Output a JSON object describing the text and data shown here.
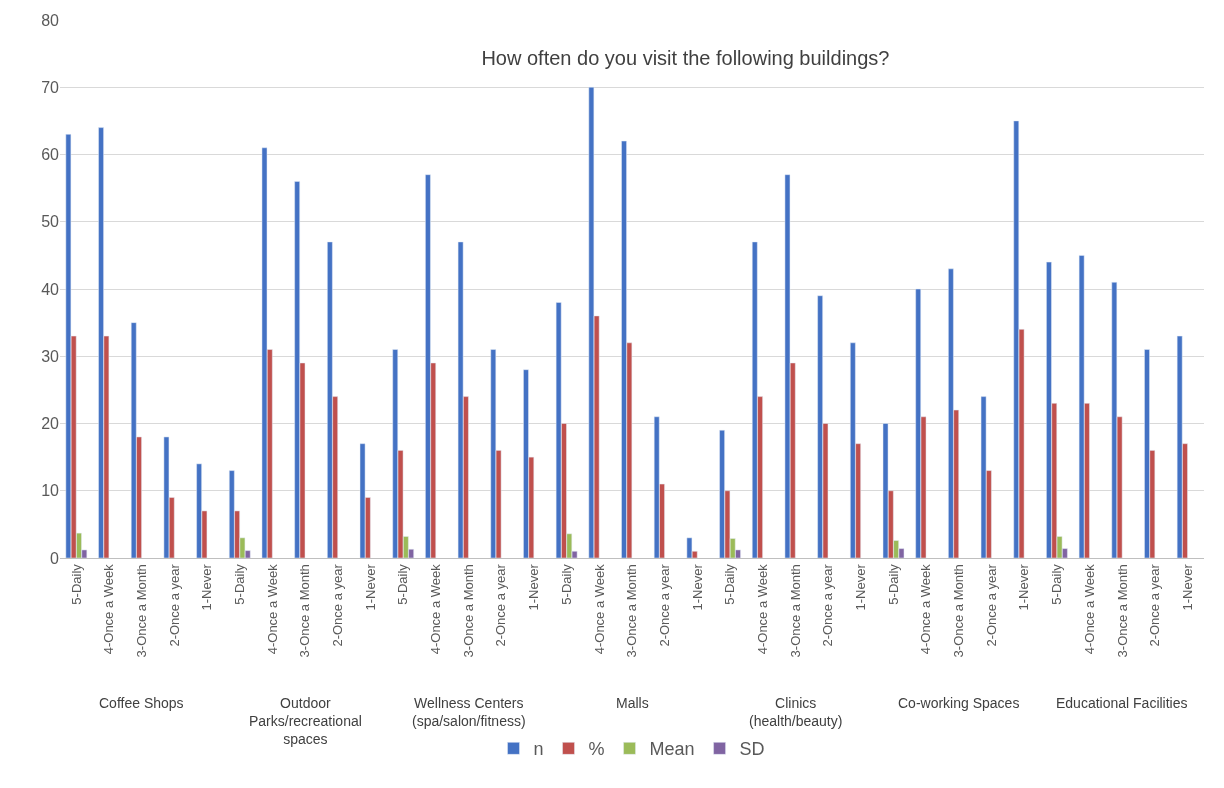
{
  "chart_data": {
    "type": "bar",
    "title": "How often do you visit the following buildings?",
    "categories": [
      "5-Daily",
      "4-Once a Week",
      "3-Once a Month",
      "2-Once a year",
      "1-Never",
      "5-Daily",
      "4-Once a Week",
      "3-Once a Month",
      "2-Once a year",
      "1-Never",
      "5-Daily",
      "4-Once a Week",
      "3-Once a Month",
      "2-Once a year",
      "1-Never",
      "5-Daily",
      "4-Once a Week",
      "3-Once a Month",
      "2-Once a year",
      "1-Never",
      "5-Daily",
      "4-Once a Week",
      "3-Once a Month",
      "2-Once a year",
      "1-Never",
      "5-Daily",
      "4-Once a Week",
      "3-Once a Month",
      "2-Once a year",
      "1-Never",
      "5-Daily",
      "4-Once a Week",
      "3-Once a Month",
      "2-Once a year",
      "1-Never"
    ],
    "series": [
      {
        "name": "n",
        "color": "#4472c4",
        "values": [
          63,
          64,
          35,
          18,
          14,
          13,
          61,
          56,
          47,
          17,
          31,
          57,
          47,
          31,
          28,
          38,
          70,
          62,
          21,
          3,
          19,
          47,
          57,
          39,
          32,
          20,
          40,
          43,
          24,
          65,
          44,
          45,
          41,
          31,
          33
        ]
      },
      {
        "name": "%",
        "color": "#c0504d",
        "values": [
          33,
          33,
          18,
          9,
          7,
          7,
          31,
          29,
          24,
          9,
          16,
          29,
          24,
          16,
          15,
          20,
          36,
          32,
          11,
          1,
          10,
          24,
          29,
          20,
          17,
          10,
          21,
          22,
          13,
          34,
          23,
          23,
          21,
          16,
          17
        ]
      },
      {
        "name": "Mean",
        "color": "#9bbb59",
        "values": [
          3.7,
          null,
          null,
          null,
          null,
          3.0,
          null,
          null,
          null,
          null,
          3.2,
          null,
          null,
          null,
          null,
          3.6,
          null,
          null,
          null,
          null,
          2.9,
          null,
          null,
          null,
          null,
          2.6,
          null,
          null,
          null,
          null,
          3.2,
          null,
          null,
          null,
          null
        ]
      },
      {
        "name": "SD",
        "color": "#8064a2",
        "values": [
          1.2,
          null,
          null,
          null,
          null,
          1.1,
          null,
          null,
          null,
          null,
          1.3,
          null,
          null,
          null,
          null,
          1.0,
          null,
          null,
          null,
          null,
          1.2,
          null,
          null,
          null,
          null,
          1.4,
          null,
          null,
          null,
          null,
          1.4,
          null,
          null,
          null,
          null
        ]
      }
    ],
    "annotations": [
      "Coffee Shops",
      "Outdoor Parks/recreational spaces",
      "Wellness Centers (spa/salon/fitness)",
      "Malls",
      "Clinics (health/beauty)",
      "Co-working Spaces",
      "Educational Facilities"
    ],
    "ylim": [
      0,
      80
    ],
    "yticks": [
      0,
      10,
      20,
      30,
      40,
      50,
      60,
      70,
      80
    ],
    "grid": "y",
    "legend": "bottom"
  }
}
